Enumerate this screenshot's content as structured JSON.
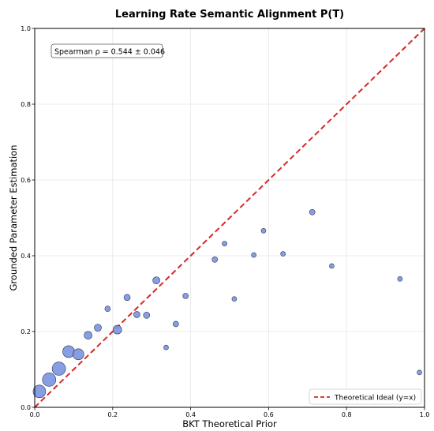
{
  "chart_data": {
    "type": "scatter",
    "title": "Learning Rate Semantic Alignment P(T)",
    "xlabel": "BKT Theoretical Prior",
    "ylabel": "Grounded Parameter Estimation",
    "xlim": [
      0.0,
      1.0
    ],
    "ylim": [
      0.0,
      1.0
    ],
    "xticks": [
      "0.0",
      "0.2",
      "0.4",
      "0.6",
      "0.8",
      "1.0"
    ],
    "yticks": [
      "0.0",
      "0.2",
      "0.4",
      "0.6",
      "0.8",
      "1.0"
    ],
    "grid": true,
    "annotation": "Spearman ρ = 0.544 ± 0.046",
    "legend": {
      "position": "bottom-right",
      "label": "Theoretical Ideal (y=x)"
    },
    "colors": {
      "points": "#7b93e0",
      "point_edge": "#2a3358",
      "ideal_line": "#d62728"
    },
    "points": [
      {
        "x": 0.012,
        "y": 0.042,
        "r": 8
      },
      {
        "x": 0.037,
        "y": 0.073,
        "r": 8.5
      },
      {
        "x": 0.062,
        "y": 0.102,
        "r": 8.5
      },
      {
        "x": 0.087,
        "y": 0.147,
        "r": 7.5
      },
      {
        "x": 0.112,
        "y": 0.14,
        "r": 7
      },
      {
        "x": 0.137,
        "y": 0.19,
        "r": 5
      },
      {
        "x": 0.162,
        "y": 0.21,
        "r": 4.5
      },
      {
        "x": 0.187,
        "y": 0.26,
        "r": 3.5
      },
      {
        "x": 0.212,
        "y": 0.205,
        "r": 5.5
      },
      {
        "x": 0.237,
        "y": 0.29,
        "r": 4
      },
      {
        "x": 0.262,
        "y": 0.245,
        "r": 4
      },
      {
        "x": 0.287,
        "y": 0.243,
        "r": 4
      },
      {
        "x": 0.312,
        "y": 0.335,
        "r": 4.5
      },
      {
        "x": 0.337,
        "y": 0.158,
        "r": 3
      },
      {
        "x": 0.362,
        "y": 0.22,
        "r": 3.5
      },
      {
        "x": 0.387,
        "y": 0.294,
        "r": 3.5
      },
      {
        "x": 0.462,
        "y": 0.39,
        "r": 3.5
      },
      {
        "x": 0.487,
        "y": 0.432,
        "r": 3
      },
      {
        "x": 0.512,
        "y": 0.286,
        "r": 3
      },
      {
        "x": 0.562,
        "y": 0.402,
        "r": 3
      },
      {
        "x": 0.587,
        "y": 0.466,
        "r": 3
      },
      {
        "x": 0.637,
        "y": 0.405,
        "r": 3
      },
      {
        "x": 0.712,
        "y": 0.515,
        "r": 3.5
      },
      {
        "x": 0.762,
        "y": 0.373,
        "r": 3
      },
      {
        "x": 0.937,
        "y": 0.339,
        "r": 3
      },
      {
        "x": 0.987,
        "y": 0.092,
        "r": 3
      }
    ]
  }
}
